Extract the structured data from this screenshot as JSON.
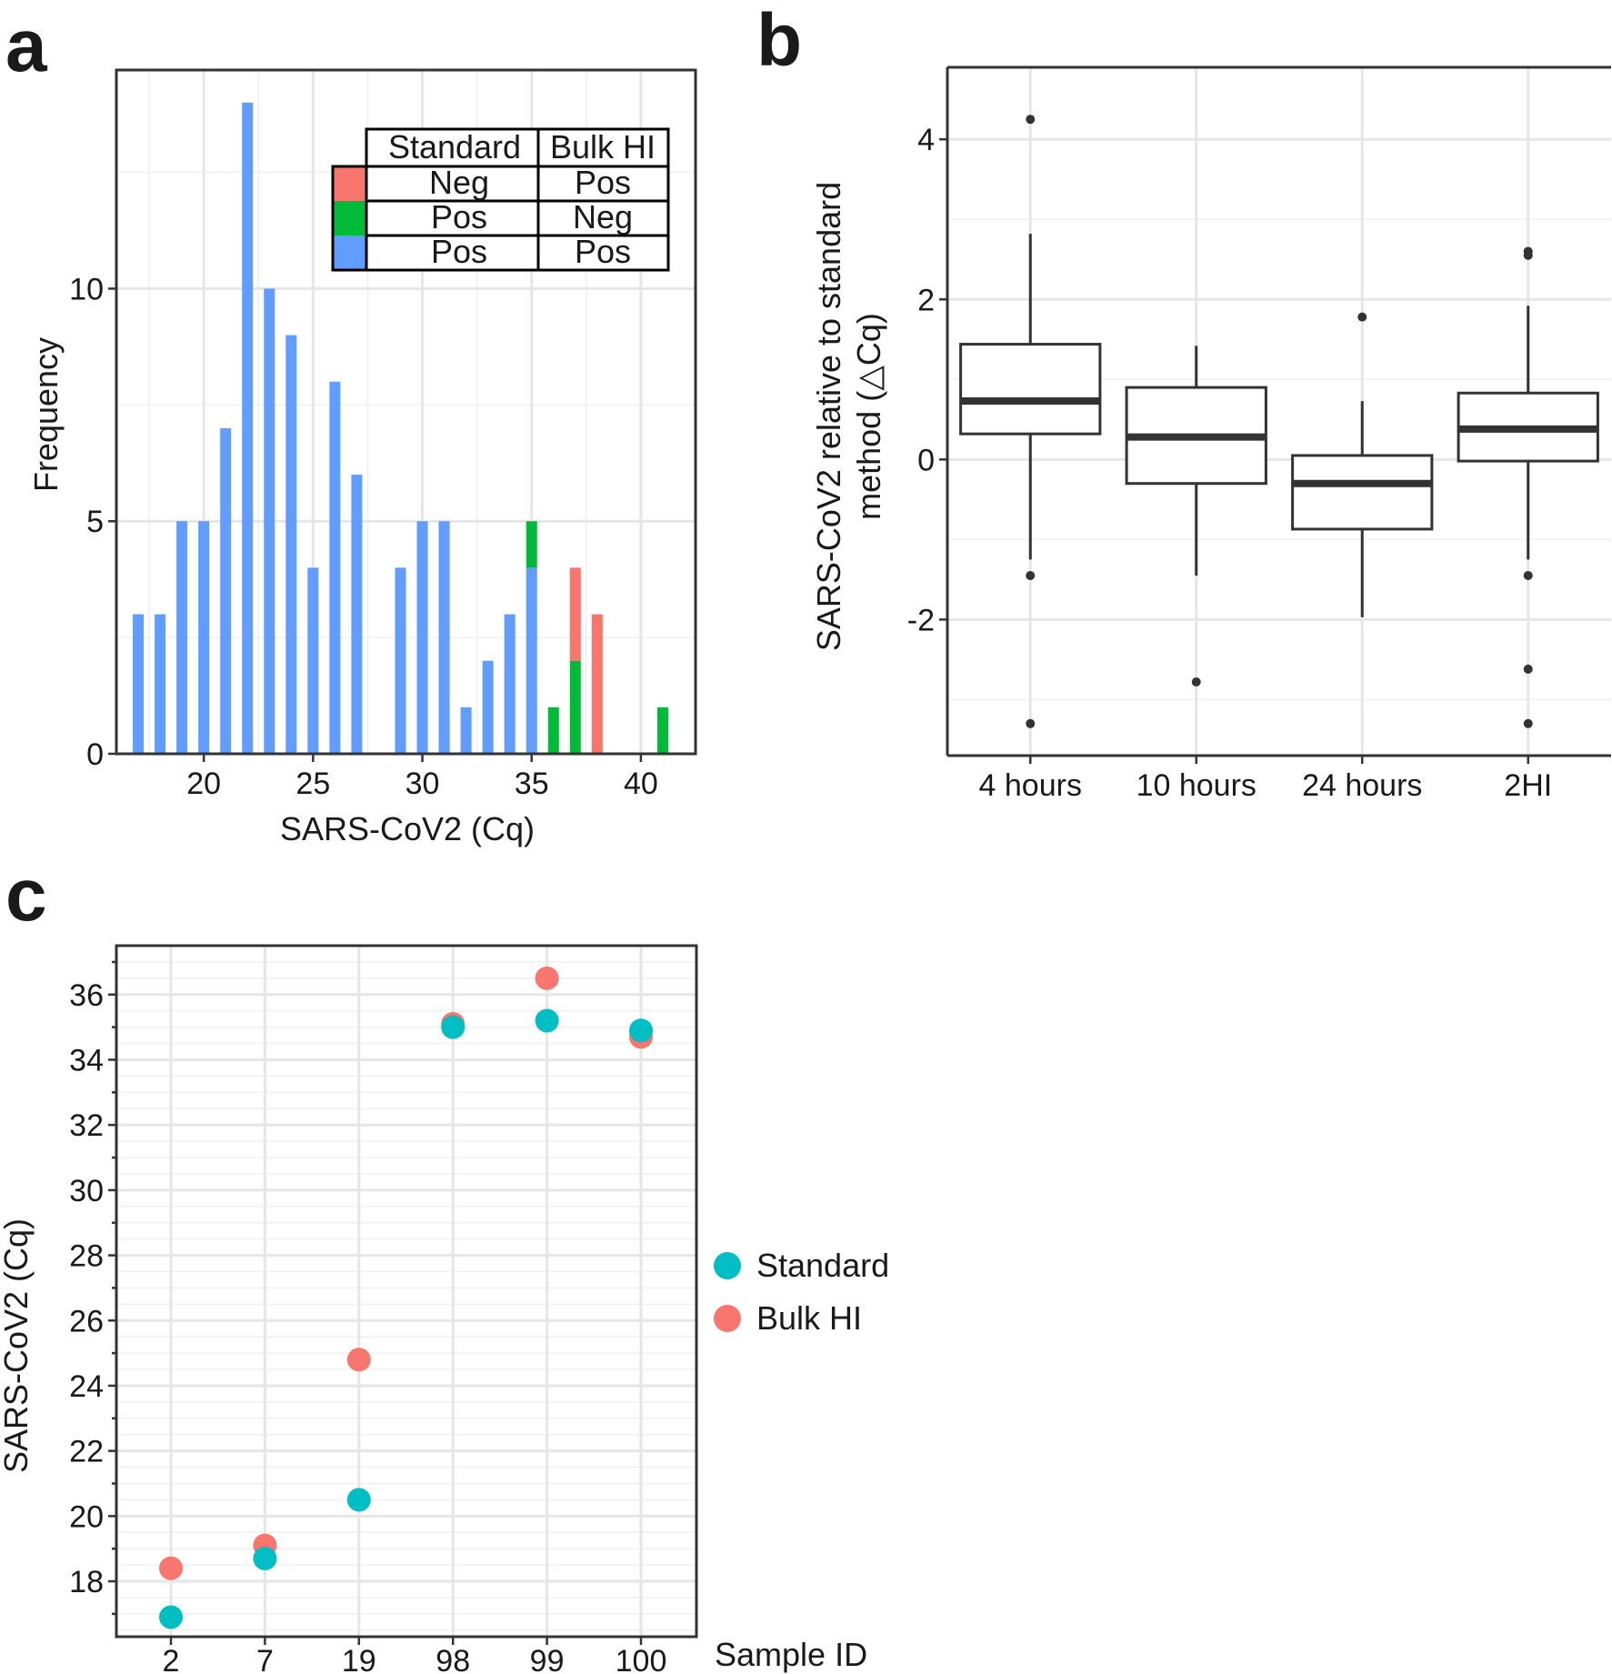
{
  "panels": {
    "a": "a",
    "b": "b",
    "c": "c"
  },
  "colors": {
    "blue": "#619CFF",
    "green": "#00BA38",
    "red": "#F8766D",
    "teal": "#00BFC4",
    "salmon": "#F8766D",
    "box": "#333333"
  },
  "chart_data": [
    {
      "id": "a",
      "type": "bar",
      "stacked": true,
      "title": "",
      "xlabel": "SARS-CoV2 (Cq)",
      "ylabel": "Frequency",
      "xlim": [
        16,
        42.5
      ],
      "ylim": [
        0,
        14.7
      ],
      "xticks": [
        20,
        25,
        30,
        35,
        40
      ],
      "yticks": [
        0,
        5,
        10
      ],
      "bin_width": 1,
      "x": [
        17,
        18,
        19,
        20,
        21,
        22,
        23,
        24,
        25,
        26,
        27,
        29,
        30,
        31,
        32,
        33,
        34,
        35,
        36,
        37,
        38,
        41
      ],
      "series": [
        {
          "name": "Pos / Pos",
          "color_key": "blue",
          "values": [
            3,
            3,
            5,
            5,
            7,
            14,
            10,
            9,
            4,
            8,
            6,
            4,
            5,
            5,
            1,
            2,
            3,
            4,
            0,
            0,
            0,
            0
          ]
        },
        {
          "name": "Pos / Neg",
          "color_key": "green",
          "values": [
            0,
            0,
            0,
            0,
            0,
            0,
            0,
            0,
            0,
            0,
            0,
            0,
            0,
            0,
            0,
            0,
            0,
            1,
            1,
            2,
            0,
            1
          ]
        },
        {
          "name": "Neg / Pos",
          "color_key": "red",
          "values": [
            0,
            0,
            0,
            0,
            0,
            0,
            0,
            0,
            0,
            0,
            0,
            0,
            0,
            0,
            0,
            0,
            0,
            0,
            0,
            2,
            3,
            0
          ]
        }
      ],
      "legend_table": {
        "headers": [
          "Standard",
          "Bulk HI"
        ],
        "rows": [
          {
            "color_key": "red",
            "standard": "Neg",
            "bulk": "Pos"
          },
          {
            "color_key": "green",
            "standard": "Pos",
            "bulk": "Neg"
          },
          {
            "color_key": "blue",
            "standard": "Pos",
            "bulk": "Pos"
          }
        ],
        "position": "top-right"
      }
    },
    {
      "id": "b",
      "type": "box",
      "title": "",
      "xlabel": "",
      "ylabel_lines": [
        "SARS-CoV2 relative to standard",
        "method (△Cq)"
      ],
      "ylim": [
        -3.7,
        4.9
      ],
      "yticks": [
        -2,
        0,
        2,
        4
      ],
      "categories": [
        "4 hours",
        "10 hours",
        "24 hours",
        "2HI"
      ],
      "boxes": [
        {
          "q1": 0.32,
          "median": 0.73,
          "q3": 1.44,
          "whisker_low": -1.25,
          "whisker_high": 2.82,
          "outliers": [
            4.25,
            -1.45,
            -3.3
          ]
        },
        {
          "q1": -0.3,
          "median": 0.28,
          "q3": 0.9,
          "whisker_low": -1.45,
          "whisker_high": 1.42,
          "outliers": [
            -2.78
          ]
        },
        {
          "q1": -0.87,
          "median": -0.3,
          "q3": 0.05,
          "whisker_low": -1.97,
          "whisker_high": 0.73,
          "outliers": [
            1.78
          ]
        },
        {
          "q1": -0.02,
          "median": 0.38,
          "q3": 0.83,
          "whisker_low": -1.25,
          "whisker_high": 1.92,
          "outliers": [
            2.6,
            2.55,
            -1.45,
            -2.62,
            -3.3
          ]
        }
      ]
    },
    {
      "id": "c",
      "type": "scatter",
      "title": "",
      "xlabel": "Sample ID",
      "ylabel": "SARS-CoV2 (Cq)",
      "ylim": [
        16.3,
        37.5
      ],
      "yticks": [
        18,
        20,
        22,
        24,
        26,
        28,
        30,
        32,
        34,
        36
      ],
      "categories": [
        "2",
        "7",
        "19",
        "98",
        "99",
        "100"
      ],
      "series": [
        {
          "name": "Standard",
          "color_key": "teal",
          "values": [
            16.9,
            18.7,
            20.5,
            35.0,
            35.2,
            34.9
          ]
        },
        {
          "name": "Bulk HI",
          "color_key": "salmon",
          "values": [
            18.4,
            19.1,
            24.8,
            35.1,
            36.5,
            34.7
          ]
        }
      ],
      "legend_position": "right"
    }
  ]
}
